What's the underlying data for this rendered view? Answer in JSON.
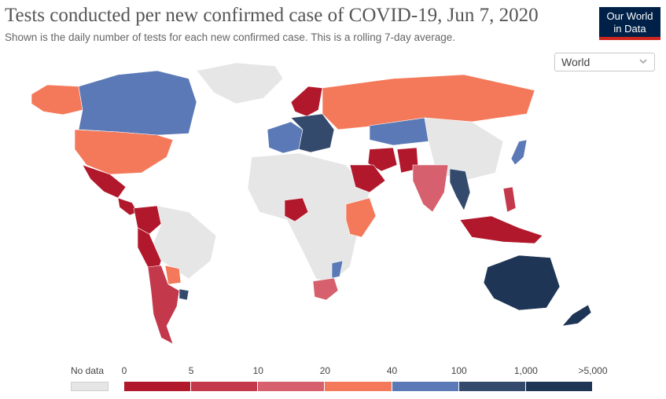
{
  "header": {
    "title": "Tests conducted per new confirmed case of COVID-19, Jun 7, 2020",
    "subtitle": "Shown is the daily number of tests for each new confirmed case. This is a rolling 7-day average."
  },
  "logo": {
    "line1": "Our World",
    "line2": "in Data"
  },
  "region_select": {
    "value": "World",
    "icon": "chevron-down-icon"
  },
  "legend": {
    "no_data_label": "No data",
    "no_data_color": "#e6e6e6",
    "ticks": [
      "0",
      "5",
      "10",
      "20",
      "40",
      "100",
      "1,000",
      ">5,000"
    ],
    "bins": [
      {
        "from": "0",
        "to": "5",
        "color": "#b2182b"
      },
      {
        "from": "5",
        "to": "10",
        "color": "#c3384a"
      },
      {
        "from": "10",
        "to": "20",
        "color": "#d6606d"
      },
      {
        "from": "20",
        "to": "40",
        "color": "#f4795a"
      },
      {
        "from": "40",
        "to": "100",
        "color": "#5b79b6"
      },
      {
        "from": "100",
        "to": "1,000",
        "color": "#344a6d"
      },
      {
        "from": "1,000",
        "to": ">5,000",
        "color": "#1f3556"
      }
    ]
  },
  "map": {
    "no_data_color": "#e6e6e6",
    "regions": [
      {
        "name": "greenland",
        "bin": "nodata"
      },
      {
        "name": "alaska",
        "bin": "20-40"
      },
      {
        "name": "canada",
        "bin": "40-100"
      },
      {
        "name": "usa",
        "bin": "20-40"
      },
      {
        "name": "mexico",
        "bin": "0-5"
      },
      {
        "name": "central-america",
        "bin": "0-5"
      },
      {
        "name": "colombia",
        "bin": "0-5"
      },
      {
        "name": "peru-bolivia",
        "bin": "0-5"
      },
      {
        "name": "chile-argentina",
        "bin": "0-5"
      },
      {
        "name": "paraguay",
        "bin": "20-40"
      },
      {
        "name": "uruguay",
        "bin": "100-1000"
      },
      {
        "name": "brazil",
        "bin": "nodata"
      },
      {
        "name": "north-africa",
        "bin": "nodata"
      },
      {
        "name": "nigeria",
        "bin": "0-5"
      },
      {
        "name": "ethiopia-kenya",
        "bin": "20-40"
      },
      {
        "name": "south-africa",
        "bin": "10-20"
      },
      {
        "name": "mozambique",
        "bin": "40-100"
      },
      {
        "name": "scandinavia",
        "bin": "0-5"
      },
      {
        "name": "western-europe",
        "bin": "40-100"
      },
      {
        "name": "central-europe",
        "bin": "100-1000"
      },
      {
        "name": "russia",
        "bin": "20-40"
      },
      {
        "name": "kazakhstan",
        "bin": "40-100"
      },
      {
        "name": "iran",
        "bin": "0-5"
      },
      {
        "name": "saudi-arabia",
        "bin": "0-5"
      },
      {
        "name": "pakistan",
        "bin": "0-5"
      },
      {
        "name": "india",
        "bin": "10-20"
      },
      {
        "name": "myanmar-thailand",
        "bin": "100-1000"
      },
      {
        "name": "china",
        "bin": "nodata"
      },
      {
        "name": "japan",
        "bin": "40-100"
      },
      {
        "name": "indonesia",
        "bin": "0-5"
      },
      {
        "name": "philippines",
        "bin": "5-10"
      },
      {
        "name": "australia",
        "bin": "1000-5000"
      },
      {
        "name": "new-zealand",
        "bin": "1000-5000"
      }
    ]
  }
}
